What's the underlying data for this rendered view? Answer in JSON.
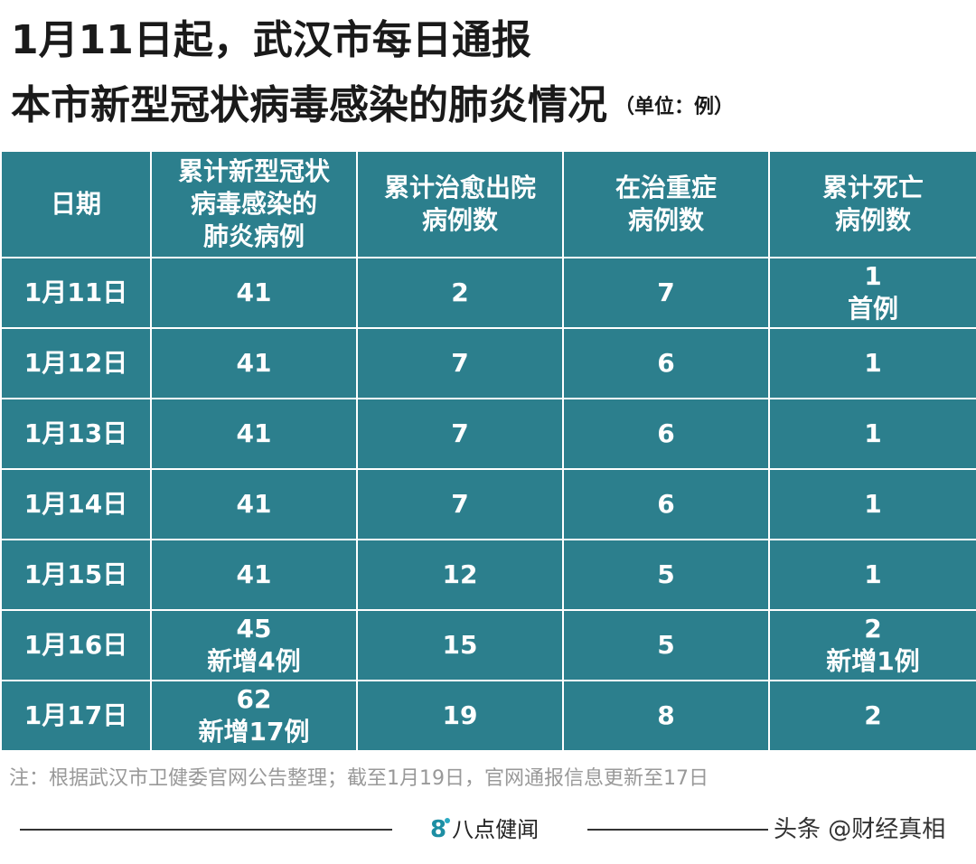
{
  "title": {
    "line1": "1月11日起，武汉市每日通报",
    "line2": "本市新型冠状病毒感染的肺炎情况",
    "unit": "（单位：例）"
  },
  "table": {
    "headers": [
      [
        "日期"
      ],
      [
        "累计新型冠状",
        "病毒感染的",
        "肺炎病例"
      ],
      [
        "累计治愈出院",
        "病例数"
      ],
      [
        "在治重症",
        "病例数"
      ],
      [
        "累计死亡",
        "病例数"
      ]
    ],
    "rows": [
      {
        "date": "1月11日",
        "cases": [
          "41"
        ],
        "cured": "2",
        "severe": "7",
        "deaths": [
          "1",
          "首例"
        ]
      },
      {
        "date": "1月12日",
        "cases": [
          "41"
        ],
        "cured": "7",
        "severe": "6",
        "deaths": [
          "1"
        ]
      },
      {
        "date": "1月13日",
        "cases": [
          "41"
        ],
        "cured": "7",
        "severe": "6",
        "deaths": [
          "1"
        ]
      },
      {
        "date": "1月14日",
        "cases": [
          "41"
        ],
        "cured": "7",
        "severe": "6",
        "deaths": [
          "1"
        ]
      },
      {
        "date": "1月15日",
        "cases": [
          "41"
        ],
        "cured": "12",
        "severe": "5",
        "deaths": [
          "1"
        ]
      },
      {
        "date": "1月16日",
        "cases": [
          "45",
          "新增4例"
        ],
        "cured": "15",
        "severe": "5",
        "deaths": [
          "2",
          "新增1例"
        ]
      },
      {
        "date": "1月17日",
        "cases": [
          "62",
          "新增17例"
        ],
        "cured": "19",
        "severe": "8",
        "deaths": [
          "2"
        ]
      }
    ]
  },
  "note": "注：根据武汉市卫健委官网公告整理；截至1月19日，官网通报信息更新至17日",
  "footer": {
    "brand_icon_text": "8",
    "brand": "八点健闻",
    "watermark": "头条 @财经真相"
  },
  "colors": {
    "table_bg": "#2c7f8d",
    "title": "#1a1a1a",
    "note": "#999999"
  }
}
